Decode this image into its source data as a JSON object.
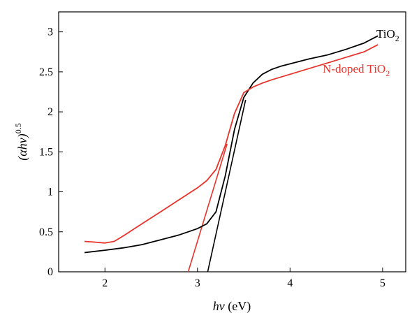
{
  "chart_data": {
    "type": "line",
    "xlabel": "hν (eV)",
    "xlabel_italic": "hν",
    "xlabel_unit": " (eV)",
    "ylabel": "(αhν)^0.5",
    "ylabel_base": "(αhν)",
    "ylabel_exp": "0.5",
    "xlim": [
      1.5,
      5.25
    ],
    "ylim": [
      0,
      3.25
    ],
    "x_ticks": [
      2,
      3,
      4,
      5
    ],
    "x_tick_labels": [
      "2",
      "3",
      "4",
      "5"
    ],
    "y_ticks": [
      0,
      0.5,
      1,
      1.5,
      2,
      2.5,
      3
    ],
    "y_tick_labels": [
      "0",
      "0.5",
      "1",
      "1.5",
      "2",
      "2.5",
      "3"
    ],
    "grid": false,
    "series": [
      {
        "name": "TiO2",
        "label_main": "TiO",
        "label_sub": "2",
        "color": "#000000",
        "x": [
          1.78,
          2.0,
          2.2,
          2.4,
          2.6,
          2.8,
          3.0,
          3.1,
          3.2,
          3.3,
          3.4,
          3.5,
          3.6,
          3.7,
          3.8,
          3.9,
          4.0,
          4.2,
          4.4,
          4.6,
          4.8,
          4.95
        ],
        "y": [
          0.24,
          0.27,
          0.3,
          0.34,
          0.4,
          0.46,
          0.54,
          0.6,
          0.75,
          1.2,
          1.78,
          2.18,
          2.36,
          2.47,
          2.53,
          2.57,
          2.6,
          2.66,
          2.71,
          2.78,
          2.86,
          2.95
        ]
      },
      {
        "name": "N-doped TiO2",
        "label_main": "N-doped TiO",
        "label_sub": "2",
        "color": "#e8322a",
        "x": [
          1.78,
          1.9,
          2.0,
          2.1,
          2.2,
          2.4,
          2.6,
          2.8,
          3.0,
          3.1,
          3.2,
          3.3,
          3.4,
          3.5,
          3.6,
          3.7,
          3.8,
          4.0,
          4.2,
          4.4,
          4.6,
          4.8,
          4.95
        ],
        "y": [
          0.38,
          0.37,
          0.36,
          0.38,
          0.45,
          0.6,
          0.75,
          0.9,
          1.05,
          1.14,
          1.28,
          1.58,
          1.98,
          2.24,
          2.31,
          2.36,
          2.4,
          2.47,
          2.54,
          2.61,
          2.68,
          2.75,
          2.84
        ]
      }
    ],
    "fit_lines": [
      {
        "series": "TiO2",
        "color": "#000000",
        "x": [
          3.11,
          3.52
        ],
        "y": [
          0,
          2.15
        ]
      },
      {
        "series": "N-doped TiO2",
        "color": "#e8322a",
        "x": [
          2.9,
          3.32
        ],
        "y": [
          0,
          1.6
        ]
      }
    ]
  }
}
